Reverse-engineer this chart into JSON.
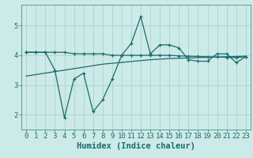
{
  "title": "",
  "xlabel": "Humidex (Indice chaleur)",
  "ylabel": "",
  "background_color": "#cceae7",
  "line_color": "#1a6b6b",
  "grid_color": "#aad4d0",
  "x_values": [
    0,
    1,
    2,
    3,
    4,
    5,
    6,
    7,
    8,
    9,
    10,
    11,
    12,
    13,
    14,
    15,
    16,
    17,
    18,
    19,
    20,
    21,
    22,
    23
  ],
  "line1_y": [
    4.1,
    4.1,
    4.1,
    4.1,
    4.1,
    4.05,
    4.05,
    4.05,
    4.05,
    4.0,
    4.0,
    4.0,
    4.0,
    4.0,
    4.0,
    4.0,
    3.98,
    3.97,
    3.96,
    3.95,
    3.94,
    3.93,
    3.92,
    3.95
  ],
  "line2_y": [
    4.1,
    4.1,
    4.1,
    3.5,
    1.9,
    3.2,
    3.4,
    2.1,
    2.5,
    3.2,
    4.0,
    4.4,
    5.3,
    4.05,
    4.35,
    4.35,
    4.25,
    3.85,
    3.8,
    3.8,
    4.05,
    4.05,
    3.75,
    3.95
  ],
  "line3_y": [
    3.3,
    3.35,
    3.4,
    3.45,
    3.5,
    3.55,
    3.6,
    3.65,
    3.7,
    3.73,
    3.76,
    3.79,
    3.82,
    3.85,
    3.87,
    3.89,
    3.9,
    3.91,
    3.92,
    3.93,
    3.94,
    3.95,
    3.96,
    3.97
  ],
  "ylim": [
    1.5,
    5.7
  ],
  "xlim": [
    -0.5,
    23.5
  ],
  "yticks": [
    2,
    3,
    4,
    5
  ],
  "xticks": [
    0,
    1,
    2,
    3,
    4,
    5,
    6,
    7,
    8,
    9,
    10,
    11,
    12,
    13,
    14,
    15,
    16,
    17,
    18,
    19,
    20,
    21,
    22,
    23
  ],
  "tick_fontsize": 6.5,
  "xlabel_fontsize": 7.5
}
